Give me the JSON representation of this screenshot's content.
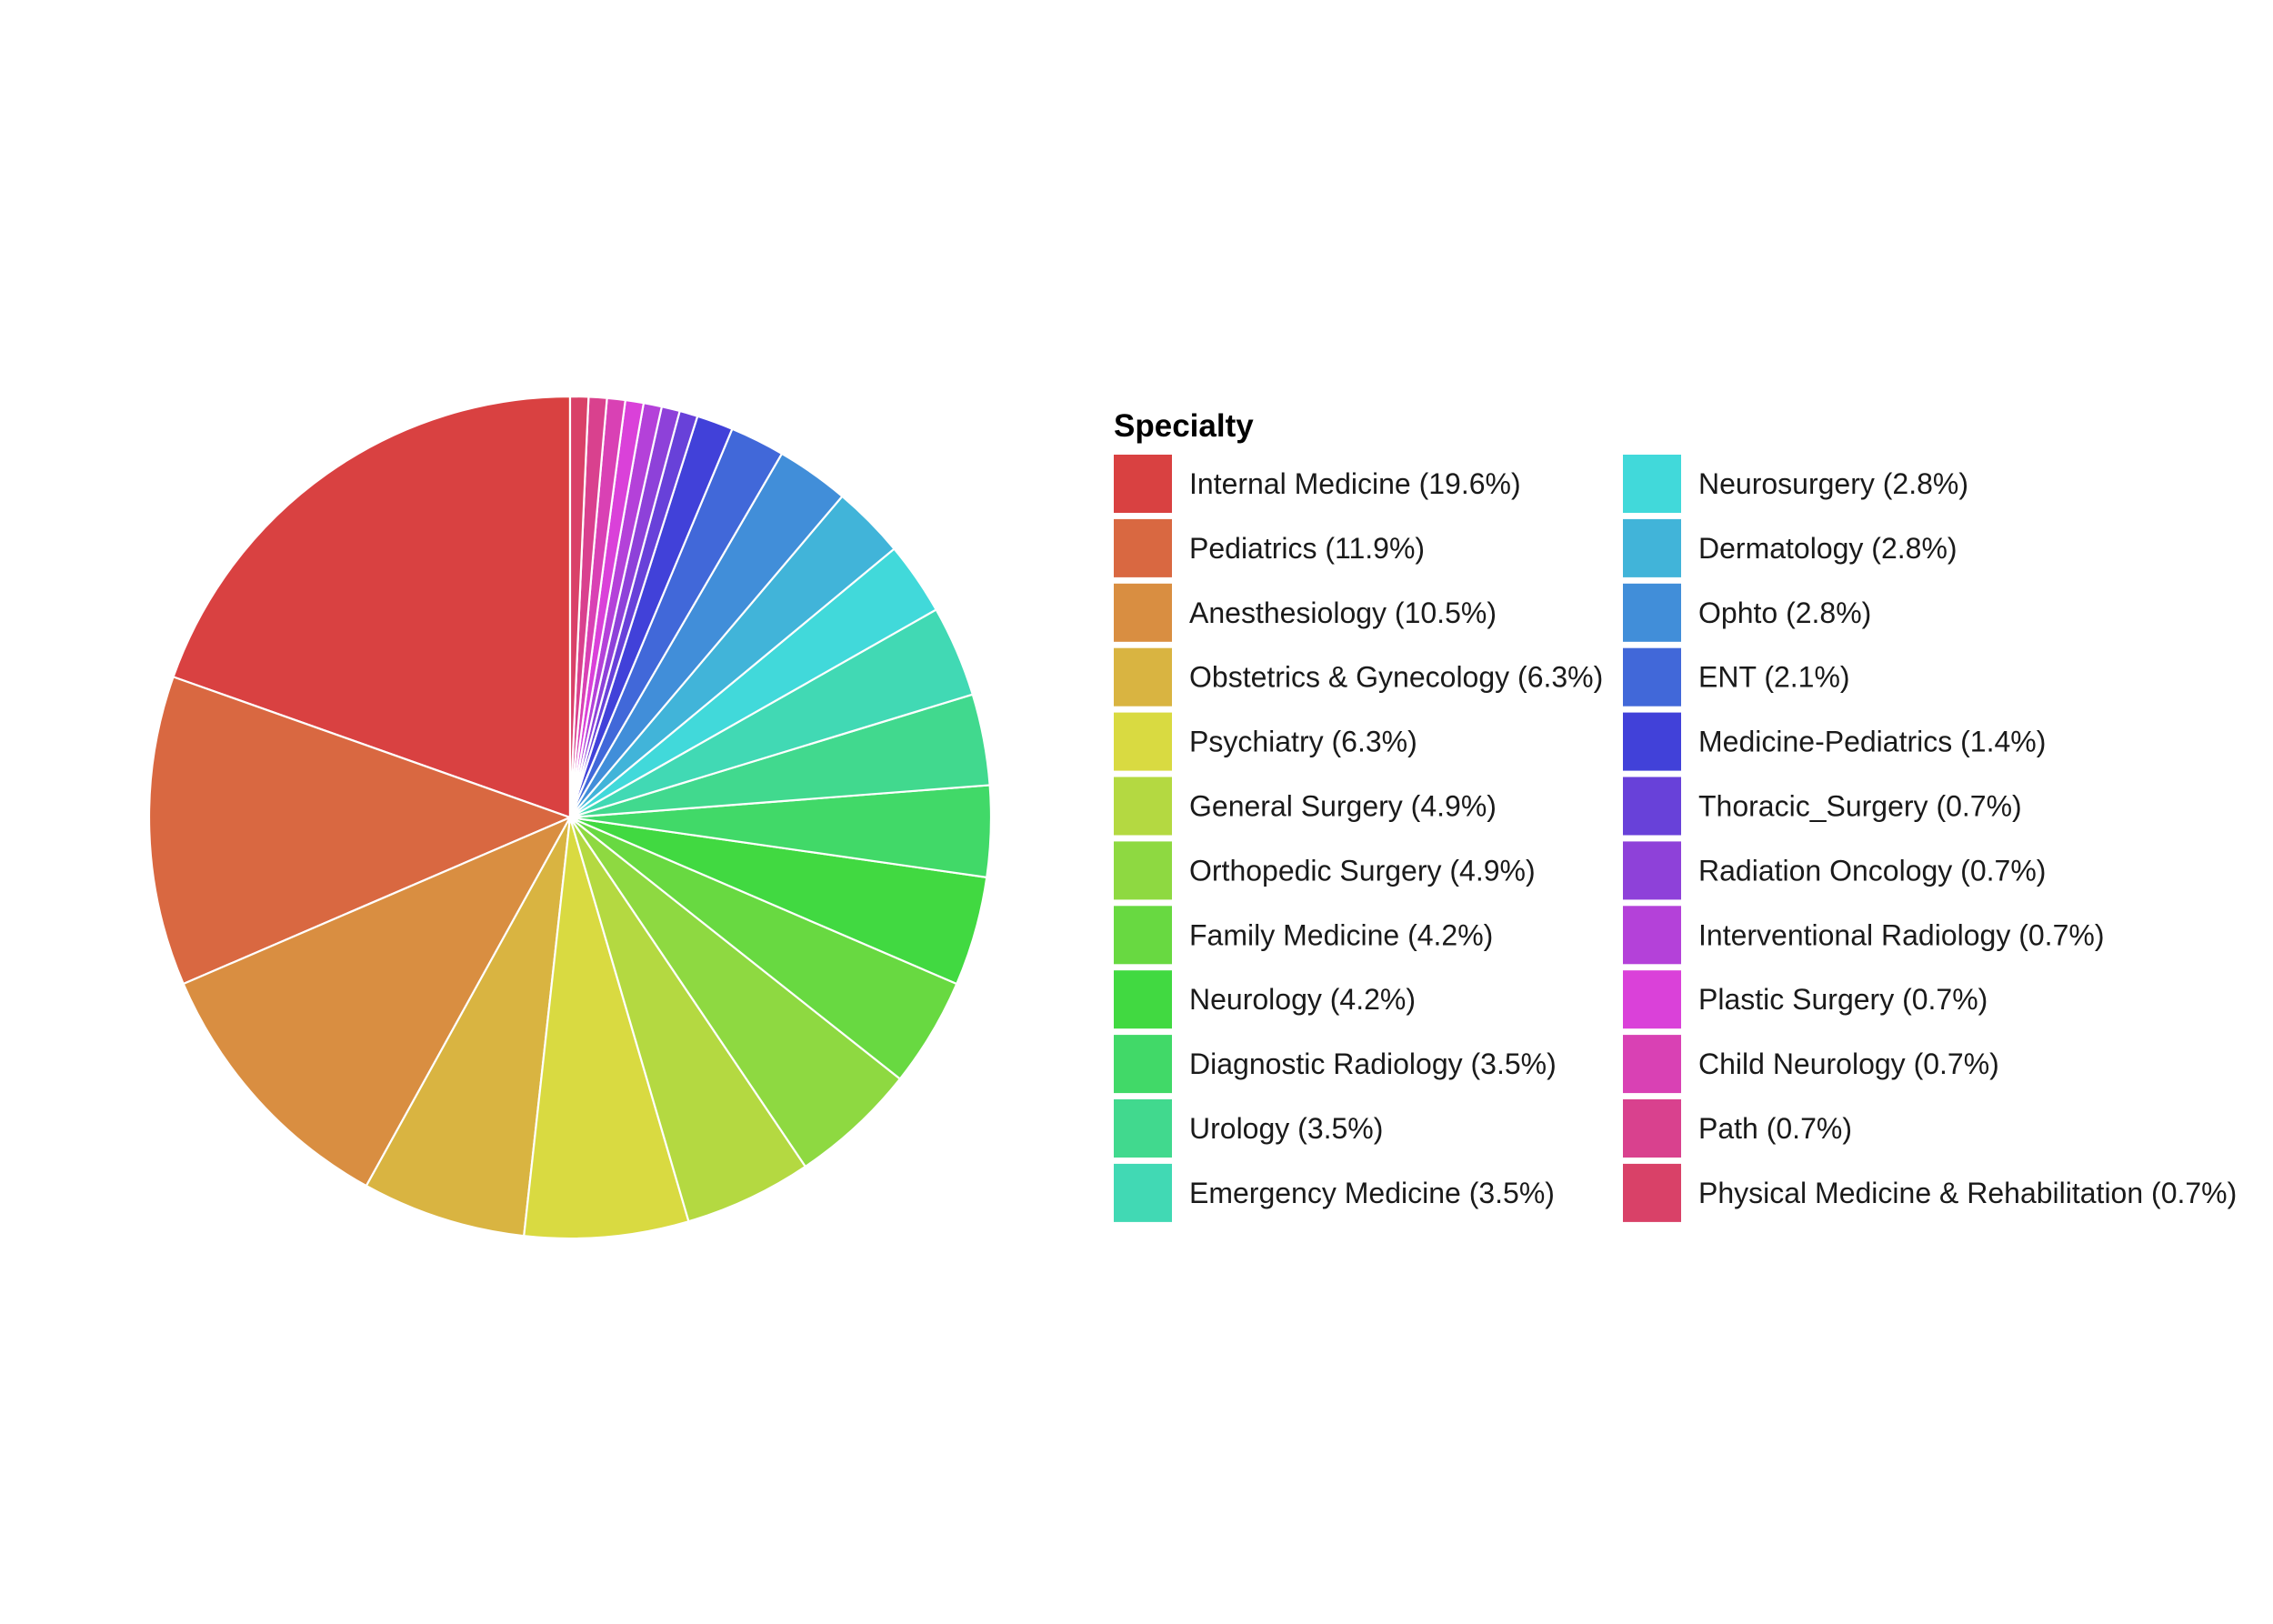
{
  "chart_data": {
    "type": "pie",
    "title": "",
    "legend_title": "Specialty",
    "legend_position": "right",
    "start": "12 o'clock",
    "direction": "counterclockwise",
    "slice_border_color": "#ffffff",
    "slices": [
      {
        "name": "Internal Medicine",
        "value": 19.6,
        "label": "Internal Medicine (19.6%)",
        "color": "#d94141"
      },
      {
        "name": "Pediatrics",
        "value": 11.9,
        "label": "Pediatrics (11.9%)",
        "color": "#d96841"
      },
      {
        "name": "Anesthesiology",
        "value": 10.5,
        "label": "Anesthesiology (10.5%)",
        "color": "#d98e41"
      },
      {
        "name": "Obstetrics & Gynecology",
        "value": 6.3,
        "label": "Obstetrics & Gynecology (6.3%)",
        "color": "#d9b441"
      },
      {
        "name": "Psychiatry",
        "value": 6.3,
        "label": "Psychiatry (6.3%)",
        "color": "#d9da41"
      },
      {
        "name": "General Surgery",
        "value": 4.9,
        "label": "General Surgery (4.9%)",
        "color": "#b4d941"
      },
      {
        "name": "Orthopedic Surgery",
        "value": 4.9,
        "label": "Orthopedic Surgery (4.9%)",
        "color": "#8ed941"
      },
      {
        "name": "Family Medicine",
        "value": 4.2,
        "label": "Family Medicine (4.2%)",
        "color": "#68d941"
      },
      {
        "name": "Neurology",
        "value": 4.2,
        "label": "Neurology (4.2%)",
        "color": "#41d941"
      },
      {
        "name": "Diagnostic Radiology",
        "value": 3.5,
        "label": "Diagnostic Radiology (3.5%)",
        "color": "#41d968"
      },
      {
        "name": "Urology",
        "value": 3.5,
        "label": "Urology (3.5%)",
        "color": "#41d98e"
      },
      {
        "name": "Emergency Medicine",
        "value": 3.5,
        "label": "Emergency Medicine (3.5%)",
        "color": "#41d9b4"
      },
      {
        "name": "Neurosurgery",
        "value": 2.8,
        "label": "Neurosurgery (2.8%)",
        "color": "#41d9da"
      },
      {
        "name": "Dermatology",
        "value": 2.8,
        "label": "Dermatology (2.8%)",
        "color": "#41b4d9"
      },
      {
        "name": "Ophto",
        "value": 2.8,
        "label": "Ophto (2.8%)",
        "color": "#418ed9"
      },
      {
        "name": "ENT",
        "value": 2.1,
        "label": "ENT (2.1%)",
        "color": "#4168d9"
      },
      {
        "name": "Medicine-Pediatrics",
        "value": 1.4,
        "label": "Medicine-Pediatrics (1.4%)",
        "color": "#4141d9"
      },
      {
        "name": "Thoracic_Surgery",
        "value": 0.7,
        "label": "Thoracic_Surgery (0.7%)",
        "color": "#6841d9"
      },
      {
        "name": "Radiation Oncology",
        "value": 0.7,
        "label": "Radiation Oncology (0.7%)",
        "color": "#8e41d9"
      },
      {
        "name": "Interventional Radiology",
        "value": 0.7,
        "label": "Interventional Radiology (0.7%)",
        "color": "#b441d9"
      },
      {
        "name": "Plastic Surgery",
        "value": 0.7,
        "label": "Plastic Surgery (0.7%)",
        "color": "#da41d9"
      },
      {
        "name": "Child Neurology",
        "value": 0.7,
        "label": "Child Neurology (0.7%)",
        "color": "#d941b4"
      },
      {
        "name": "Path",
        "value": 0.7,
        "label": "Path (0.7%)",
        "color": "#d9418e"
      },
      {
        "name": "Physical Medicine & Rehabilitation",
        "value": 0.7,
        "label": "Physical Medicine & Rehabilitation (0.7%)",
        "color": "#d94168"
      }
    ]
  }
}
